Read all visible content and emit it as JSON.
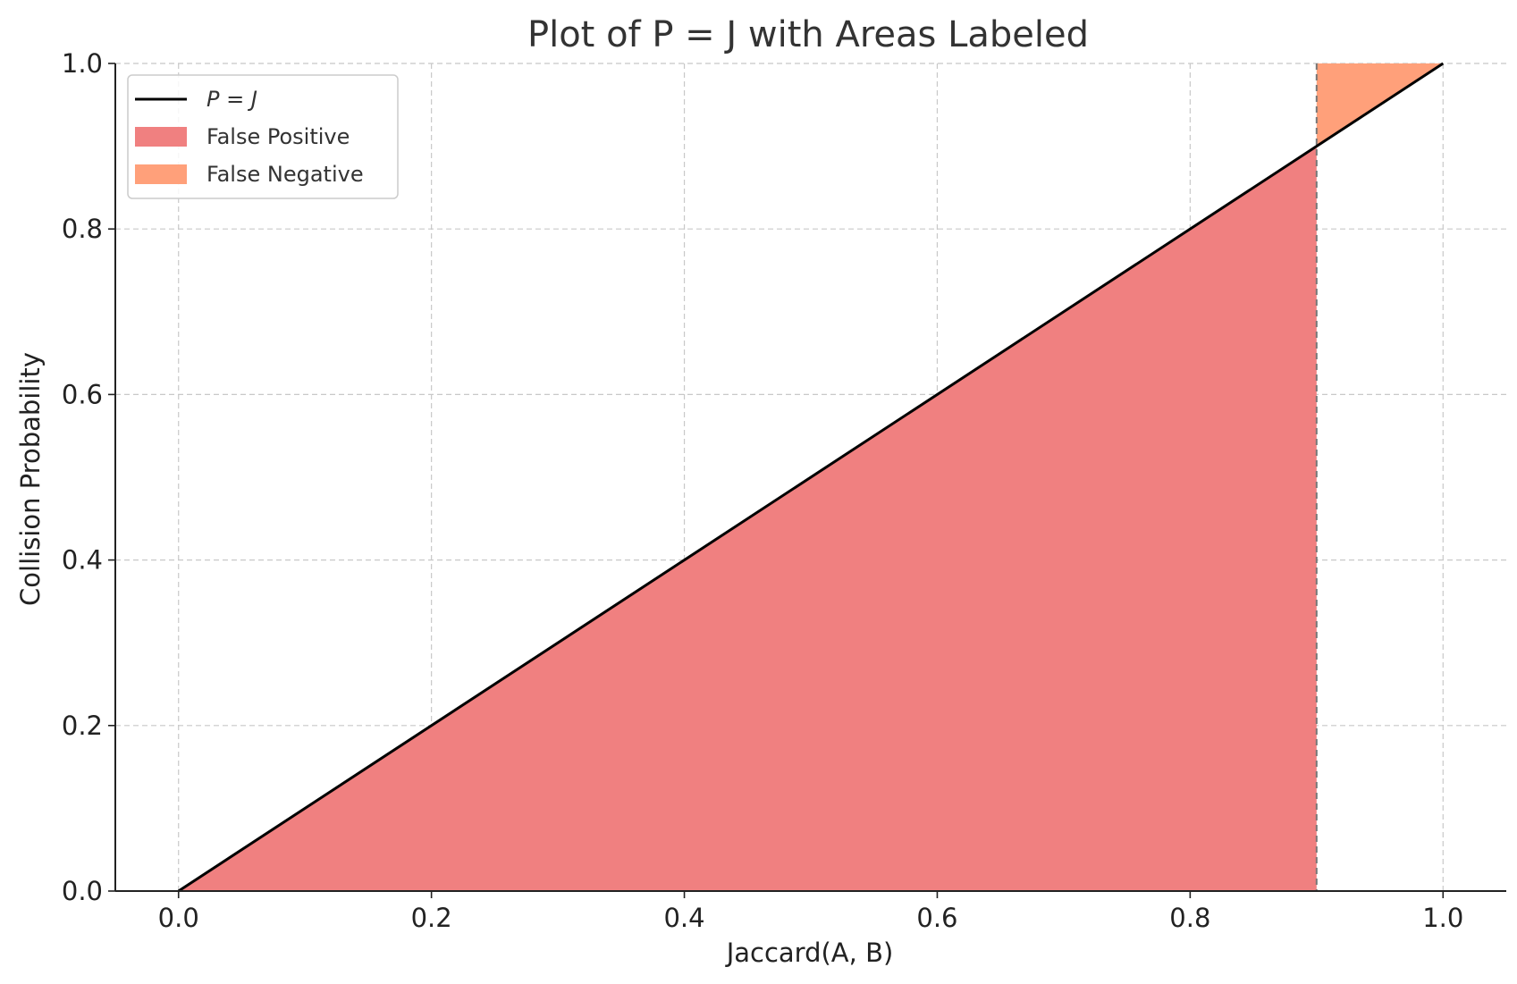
{
  "chart_data": {
    "type": "area",
    "title": "Plot of P = J with Areas Labeled",
    "xlabel": "Jaccard(A, B)",
    "ylabel": "Collision Probability",
    "xlim": [
      -0.05,
      1.05
    ],
    "ylim": [
      0.0,
      1.0
    ],
    "xticks": [
      0.0,
      0.2,
      0.4,
      0.6,
      0.8,
      1.0
    ],
    "yticks": [
      0.0,
      0.2,
      0.4,
      0.6,
      0.8,
      1.0
    ],
    "xtick_labels": [
      "0.0",
      "0.2",
      "0.4",
      "0.6",
      "0.8",
      "1.0"
    ],
    "ytick_labels": [
      "0.0",
      "0.2",
      "0.4",
      "0.6",
      "0.8",
      "1.0"
    ],
    "grid": true,
    "legend_position": "top-left",
    "threshold": 0.9,
    "series": [
      {
        "name": "P = J",
        "kind": "line",
        "color": "#000000",
        "x": [
          0.0,
          1.0
        ],
        "y": [
          0.0,
          1.0
        ]
      },
      {
        "name": "False Positive",
        "kind": "fill",
        "color": "#f08080",
        "x": [
          0.0,
          0.9
        ],
        "y_lower": [
          0.0,
          0.0
        ],
        "y_upper": [
          0.0,
          0.9
        ]
      },
      {
        "name": "False Negative",
        "kind": "fill",
        "color": "#ffa07a",
        "x": [
          0.9,
          1.0
        ],
        "y_lower": [
          0.9,
          1.0
        ],
        "y_upper": [
          1.0,
          1.0
        ]
      }
    ],
    "legend": [
      {
        "label_prefix": "P",
        "label_eq": " = ",
        "label_suffix": "J",
        "kind": "line",
        "color": "#000000"
      },
      {
        "label": "False Positive",
        "kind": "patch",
        "color": "#f08080"
      },
      {
        "label": "False Negative",
        "kind": "patch",
        "color": "#ffa07a"
      }
    ]
  }
}
